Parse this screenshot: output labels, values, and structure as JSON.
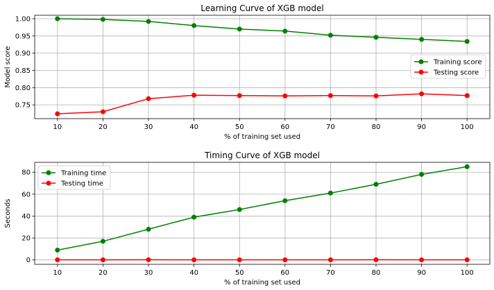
{
  "chart_data": [
    {
      "type": "line",
      "title": "Learning Curve of XGB model",
      "xlabel": "% of training set used",
      "ylabel": "Model score",
      "x": [
        10,
        20,
        30,
        40,
        50,
        60,
        70,
        80,
        90,
        100
      ],
      "xlim": [
        5,
        105
      ],
      "ylim": [
        0.71,
        1.01
      ],
      "yticks": [
        0.75,
        0.8,
        0.85,
        0.9,
        0.95,
        1.0
      ],
      "ytick_labels": [
        "0.75",
        "0.80",
        "0.85",
        "0.90",
        "0.95",
        "1.00"
      ],
      "xticks": [
        10,
        20,
        30,
        40,
        50,
        60,
        70,
        80,
        90,
        100
      ],
      "grid": true,
      "legend_position": "right",
      "series": [
        {
          "name": "Training score",
          "color": "#008000",
          "values": [
            1.0,
            0.998,
            0.992,
            0.98,
            0.97,
            0.964,
            0.952,
            0.946,
            0.94,
            0.934
          ]
        },
        {
          "name": "Testing score",
          "color": "#ff0000",
          "values": [
            0.724,
            0.73,
            0.768,
            0.778,
            0.777,
            0.776,
            0.777,
            0.776,
            0.782,
            0.777
          ]
        }
      ]
    },
    {
      "type": "line",
      "title": "Timing Curve of XGB model",
      "xlabel": "% of training set used",
      "ylabel": "Seconds",
      "x": [
        10,
        20,
        30,
        40,
        50,
        60,
        70,
        80,
        90,
        100
      ],
      "xlim": [
        5,
        105
      ],
      "ylim": [
        -4,
        89
      ],
      "yticks": [
        0,
        20,
        40,
        60,
        80
      ],
      "ytick_labels": [
        "0",
        "20",
        "40",
        "60",
        "80"
      ],
      "xticks": [
        10,
        20,
        30,
        40,
        50,
        60,
        70,
        80,
        90,
        100
      ],
      "grid": true,
      "legend_position": "top-left",
      "series": [
        {
          "name": "Training time",
          "color": "#008000",
          "values": [
            9,
            17,
            28,
            39,
            46,
            54,
            61,
            69,
            78,
            85
          ]
        },
        {
          "name": "Testing time",
          "color": "#ff0000",
          "values": [
            0.1,
            0.1,
            0.2,
            0.1,
            0.1,
            0.1,
            0.1,
            0.2,
            0.1,
            0.1
          ]
        }
      ]
    }
  ]
}
